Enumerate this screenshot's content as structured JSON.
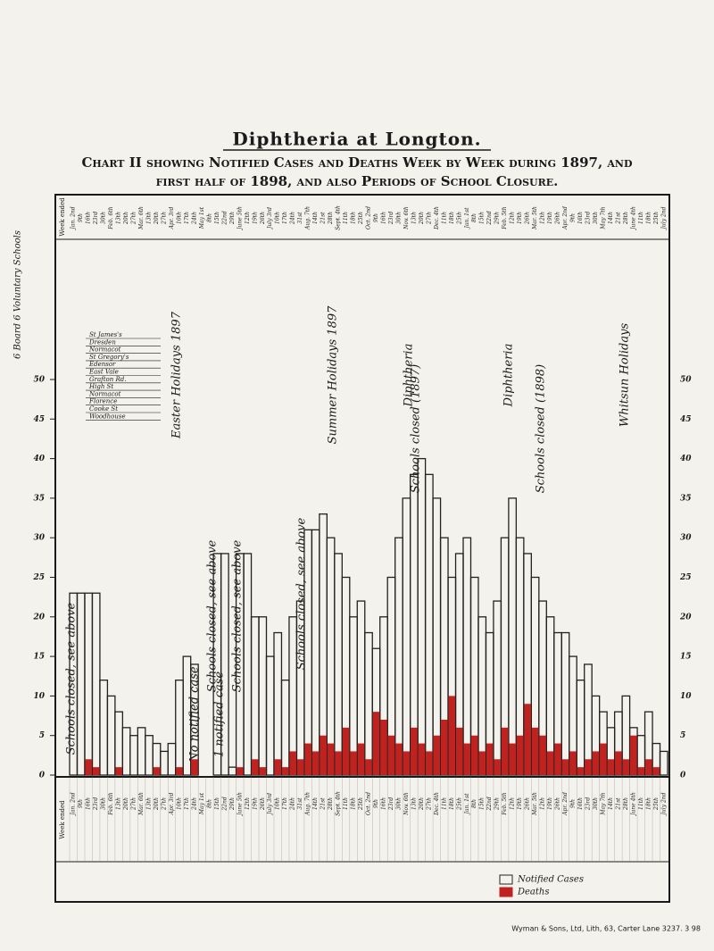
{
  "chart_data": {
    "type": "bar",
    "title": "Diphtheria at Longton.",
    "subtitle": "Chart II showing Notified Cases and Deaths Week by Week during 1897, and first half of 1898, and also Periods of School Closure.",
    "row_header": "Week ended",
    "schools_header": "6 Board 6 Voluntary Schools",
    "schools": [
      "St James's",
      "Dresden",
      "Normacot",
      "St Gregory's",
      "Edensor",
      "East Vale",
      "Grafton Rd.",
      "High St",
      "Normacot",
      "Florence",
      "Cooke St",
      "Woodhouse"
    ],
    "categories": [
      "Jan. 2nd",
      "9th",
      "16th",
      "23rd",
      "30th",
      "Feb. 6th",
      "13th",
      "20th",
      "27th",
      "Mar. 6th",
      "13th",
      "20th",
      "27th",
      "Apr. 3rd",
      "10th",
      "17th",
      "24th",
      "May 1st",
      "8th",
      "15th",
      "22nd",
      "29th",
      "June 5th",
      "12th",
      "19th",
      "26th",
      "July 3rd",
      "10th",
      "17th",
      "24th",
      "31st",
      "Aug. 7th",
      "14th",
      "21st",
      "28th",
      "Sept. 4th",
      "11th",
      "18th",
      "25th",
      "Oct. 2nd",
      "9th",
      "16th",
      "23rd",
      "30th",
      "Nov. 6th",
      "13th",
      "20th",
      "27th",
      "Dec. 4th",
      "11th",
      "18th",
      "25th",
      "Jan. 1st",
      "8th",
      "15th",
      "22nd",
      "29th",
      "Feb. 5th",
      "12th",
      "19th",
      "26th",
      "Mar. 5th",
      "12th",
      "19th",
      "26th",
      "Apr. 2nd",
      "9th",
      "16th",
      "23rd",
      "30th",
      "May 7th",
      "14th",
      "21st",
      "28th",
      "June 4th",
      "11th",
      "18th",
      "25th",
      "July 2nd"
    ],
    "series": [
      {
        "name": "Notified Cases",
        "color": "#222222",
        "values": [
          23,
          23,
          23,
          23,
          12,
          10,
          8,
          6,
          5,
          6,
          5,
          4,
          3,
          4,
          12,
          15,
          14,
          0,
          0,
          28,
          28,
          1,
          28,
          28,
          20,
          20,
          15,
          18,
          12,
          20,
          22,
          31,
          31,
          33,
          30,
          28,
          25,
          20,
          22,
          18,
          16,
          20,
          25,
          30,
          35,
          38,
          40,
          38,
          35,
          30,
          25,
          28,
          30,
          25,
          20,
          18,
          22,
          30,
          35,
          30,
          28,
          25,
          22,
          20,
          18,
          18,
          15,
          12,
          14,
          10,
          8,
          6,
          8,
          10,
          6,
          5,
          8,
          4,
          3
        ]
      },
      {
        "name": "Deaths",
        "color": "#c0231f",
        "values": [
          0,
          0,
          2,
          1,
          0,
          0,
          1,
          0,
          0,
          0,
          0,
          1,
          0,
          0,
          1,
          0,
          2,
          0,
          0,
          0,
          0,
          0,
          1,
          0,
          2,
          1,
          0,
          2,
          1,
          3,
          2,
          4,
          3,
          5,
          4,
          3,
          6,
          3,
          4,
          2,
          8,
          7,
          5,
          4,
          3,
          6,
          4,
          3,
          5,
          7,
          10,
          6,
          4,
          5,
          3,
          4,
          2,
          6,
          4,
          5,
          9,
          6,
          5,
          3,
          4,
          2,
          3,
          1,
          2,
          3,
          4,
          2,
          3,
          2,
          5,
          1,
          2,
          1,
          0
        ]
      }
    ],
    "annotations": [
      "Schools closed, see above",
      "No notified case",
      "Schools closed, see above",
      "1 notified case",
      "Schools closed, see above",
      "Schools closed, see above",
      "Schools closed (1897)",
      "Schools closed (1898)",
      "Easter Holidays 1897",
      "Summer Holidays 1897",
      "Diphtheria",
      "Diphtheria",
      "Whitsun Holidays"
    ],
    "ylim": [
      0,
      50
    ],
    "yticks": [
      0,
      5,
      10,
      15,
      20,
      25,
      30,
      35,
      40,
      45,
      50
    ],
    "footer": "Wyman & Sons, Ltd, Lith, 63, Carter Lane 3237. 3 98"
  }
}
